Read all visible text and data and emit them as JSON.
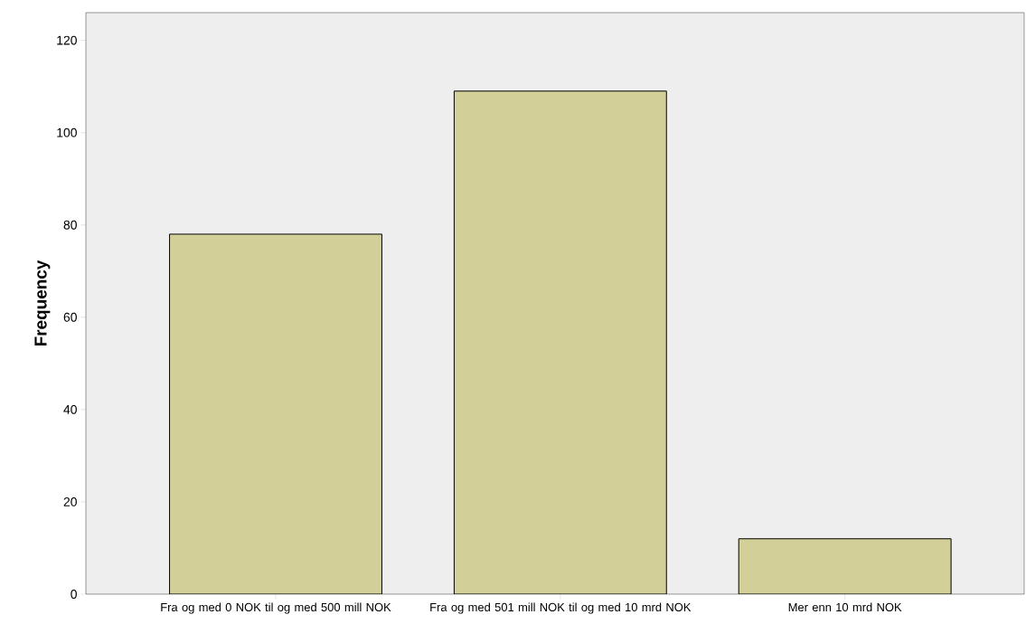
{
  "chart_data": {
    "type": "bar",
    "ylabel": "Frequency",
    "categories": [
      "Fra og med 0 NOK til og med 500 mill NOK",
      "Fra og med 501 mill NOK til og med 10 mrd NOK",
      "Mer enn 10 mrd NOK"
    ],
    "values": [
      78,
      109,
      12
    ],
    "color": "#d3cf98",
    "ylim": [
      0,
      126
    ],
    "yticks": [
      0,
      20,
      40,
      60,
      80,
      100,
      120
    ]
  }
}
